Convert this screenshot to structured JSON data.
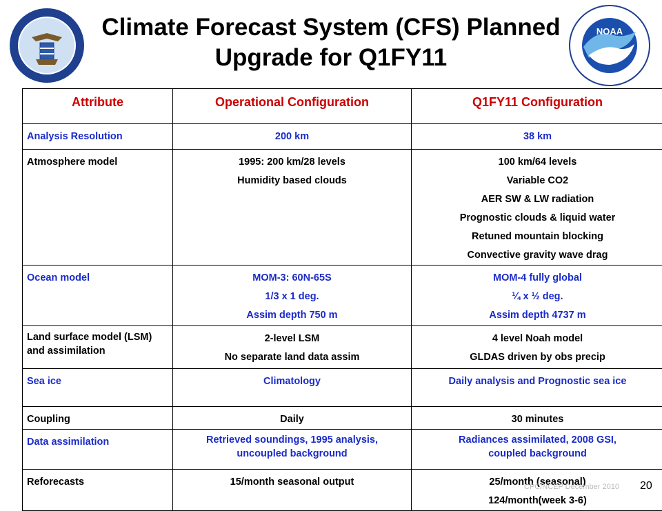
{
  "slide": {
    "title_line1": "Climate Forecast System (CFS) Planned",
    "title_line2": "Upgrade for Q1FY11",
    "footer_note": "CPC/NCEP December 2010",
    "page_number": "20"
  },
  "logos": {
    "left": "department-of-commerce-seal",
    "right": "noaa-logo"
  },
  "colors": {
    "header_text": "#cc0000",
    "blue_row_text": "#1a2bc9",
    "black_row_text": "#000000"
  },
  "table": {
    "headers": [
      "Attribute",
      "Operational Configuration",
      "Q1FY11 Configuration"
    ],
    "rows": [
      {
        "attribute": "Analysis Resolution",
        "operational": [
          "200 km"
        ],
        "q1fy11": [
          "38 km"
        ]
      },
      {
        "attribute": "Atmosphere model",
        "operational": [
          "1995: 200 km/28 levels",
          "Humidity based clouds"
        ],
        "q1fy11": [
          "100 km/64 levels",
          "Variable CO2",
          "AER SW & LW radiation",
          "Prognostic clouds & liquid water",
          "Retuned mountain blocking",
          "Convective gravity wave drag"
        ]
      },
      {
        "attribute": "Ocean model",
        "operational": [
          "MOM-3: 60N-65S",
          "1/3 x 1 deg.",
          "Assim depth 750 m"
        ],
        "q1fy11": [
          "MOM-4 fully global",
          "¼ x ½ deg.",
          "Assim depth 4737 m"
        ]
      },
      {
        "attribute": "Land surface model (LSM) and assimilation",
        "operational": [
          "2-level LSM",
          "No separate land data assim"
        ],
        "q1fy11": [
          "4 level Noah model",
          "GLDAS driven by obs precip"
        ]
      },
      {
        "attribute": "Sea ice",
        "operational": [
          "Climatology"
        ],
        "q1fy11": [
          "Daily analysis and Prognostic sea ice"
        ]
      },
      {
        "attribute": "Coupling",
        "operational": [
          "Daily"
        ],
        "q1fy11": [
          "30 minutes"
        ]
      },
      {
        "attribute": "Data assimilation",
        "operational": [
          "Retrieved soundings, 1995 analysis,",
          "uncoupled background"
        ],
        "q1fy11": [
          "Radiances assimilated, 2008 GSI,",
          "coupled background"
        ]
      },
      {
        "attribute": "Reforecasts",
        "operational": [
          "15/month seasonal output"
        ],
        "q1fy11": [
          "25/month (seasonal)",
          "124/month(week 3-6)"
        ]
      }
    ]
  }
}
